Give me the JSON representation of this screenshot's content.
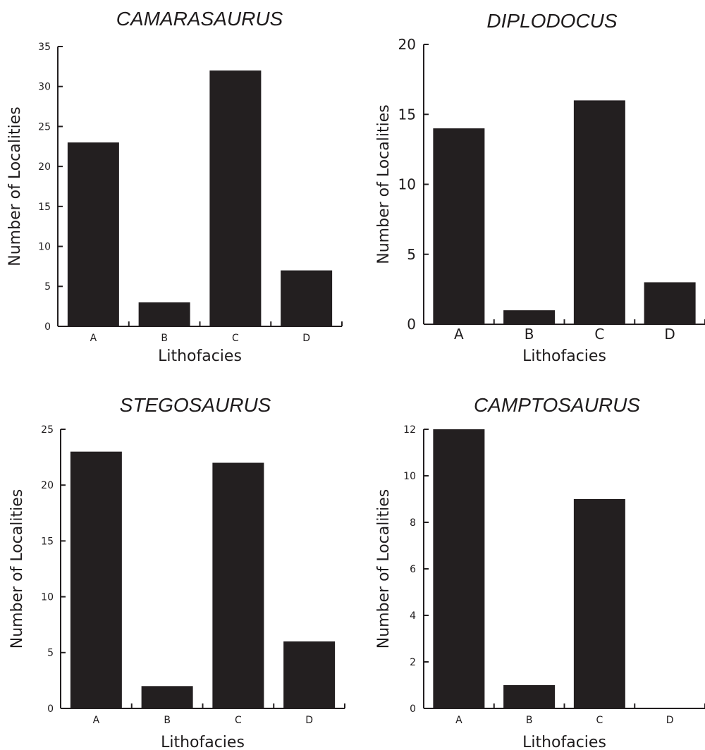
{
  "colors": {
    "bar": "#231f20",
    "axis": "#231f20"
  },
  "chart_data": [
    {
      "type": "bar",
      "title": "CAMARASAURUS",
      "xlabel": "Lithofacies",
      "ylabel": "Number of Localities",
      "categories": [
        "A",
        "B",
        "C",
        "D"
      ],
      "values": [
        23,
        3,
        32,
        7
      ],
      "ylim": [
        0,
        35
      ],
      "yticks": [
        0,
        5,
        10,
        15,
        20,
        25,
        30,
        35
      ],
      "grid": false
    },
    {
      "type": "bar",
      "title": "DIPLODOCUS",
      "xlabel": "Lithofacies",
      "ylabel": "Number of Localities",
      "categories": [
        "A",
        "B",
        "C",
        "D"
      ],
      "values": [
        14,
        1,
        16,
        3
      ],
      "ylim": [
        0,
        20
      ],
      "yticks": [
        0,
        5,
        10,
        15,
        20
      ],
      "grid": false
    },
    {
      "type": "bar",
      "title": "STEGOSAURUS",
      "xlabel": "Lithofacies",
      "ylabel": "Number of Localities",
      "categories": [
        "A",
        "B",
        "C",
        "D"
      ],
      "values": [
        23,
        2,
        22,
        6
      ],
      "ylim": [
        0,
        25
      ],
      "yticks": [
        0,
        5,
        10,
        15,
        20,
        25
      ],
      "grid": false
    },
    {
      "type": "bar",
      "title": "CAMPTOSAURUS",
      "xlabel": "Lithofacies",
      "ylabel": "Number of Localities",
      "categories": [
        "A",
        "B",
        "C",
        "D"
      ],
      "values": [
        12,
        1,
        9,
        0
      ],
      "ylim": [
        0,
        12
      ],
      "yticks": [
        0,
        2,
        4,
        6,
        8,
        10,
        12
      ],
      "grid": false
    }
  ]
}
